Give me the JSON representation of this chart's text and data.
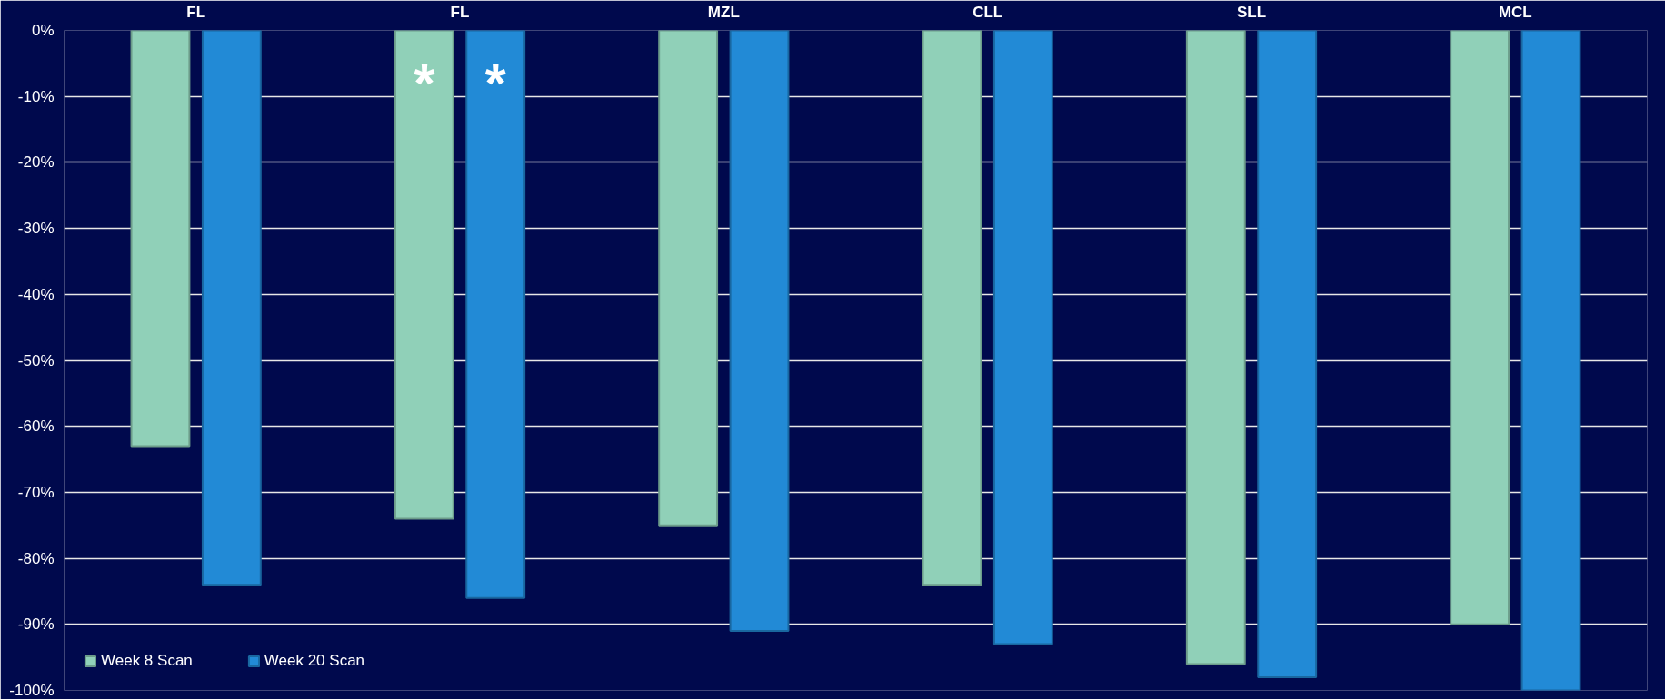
{
  "chart_data": {
    "type": "bar",
    "categories": [
      "FL",
      "FL",
      "MZL",
      "CLL",
      "SLL",
      "MCL"
    ],
    "series": [
      {
        "name": "Week 8 Scan",
        "color": "#90d0b8",
        "values": [
          -63,
          -74,
          -75,
          -84,
          -96,
          -90
        ]
      },
      {
        "name": "Week 20 Scan",
        "color": "#228ad6",
        "values": [
          -84,
          -86,
          -91,
          -93,
          -98,
          -100
        ]
      }
    ],
    "ylim": [
      -100,
      0
    ],
    "yticks": [
      {
        "value": 0,
        "label": "0%"
      },
      {
        "value": -10,
        "label": "-10%"
      },
      {
        "value": -20,
        "label": "-20%"
      },
      {
        "value": -30,
        "label": "-30%"
      },
      {
        "value": -40,
        "label": "-40%"
      },
      {
        "value": -50,
        "label": "-50%"
      },
      {
        "value": -60,
        "label": "-60%"
      },
      {
        "value": -70,
        "label": "-70%"
      },
      {
        "value": -80,
        "label": "-80%"
      },
      {
        "value": -90,
        "label": "-90%"
      },
      {
        "value": -100,
        "label": "-100%"
      }
    ],
    "annotations": [
      "*",
      "*"
    ],
    "grid": "y",
    "legend": "bottom left"
  }
}
